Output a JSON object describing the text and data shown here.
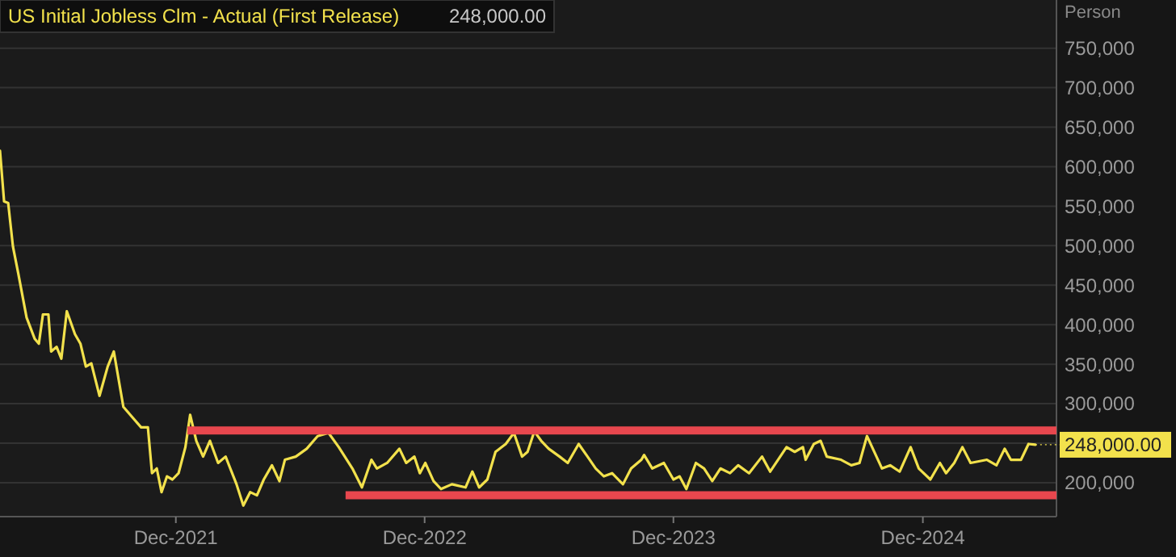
{
  "chart_data": {
    "type": "line",
    "ylabel": "Person",
    "xlim": [
      "2021-03-18",
      "2025-06-15"
    ],
    "ylim": [
      157000,
      811000
    ],
    "xticks": [
      {
        "value": "2021-12-01",
        "label": "Dec-2021"
      },
      {
        "value": "2022-12-01",
        "label": "Dec-2022"
      },
      {
        "value": "2023-12-01",
        "label": "Dec-2023"
      },
      {
        "value": "2024-12-01",
        "label": "Dec-2024"
      }
    ],
    "yticks": [
      {
        "value": 200000,
        "label": "200,000"
      },
      {
        "value": 250000,
        "label": null
      },
      {
        "value": 300000,
        "label": "300,000"
      },
      {
        "value": 350000,
        "label": "350,000"
      },
      {
        "value": 400000,
        "label": "400,000"
      },
      {
        "value": 450000,
        "label": "450,000"
      },
      {
        "value": 500000,
        "label": "500,000"
      },
      {
        "value": 550000,
        "label": "550,000"
      },
      {
        "value": 600000,
        "label": "600,000"
      },
      {
        "value": 650000,
        "label": "650,000"
      },
      {
        "value": 700000,
        "label": "700,000"
      },
      {
        "value": 750000,
        "label": "750,000"
      }
    ],
    "grid": "y",
    "legend": "top left",
    "marker": "none",
    "line_style": "solid",
    "series": [
      {
        "name": "US Initial Jobless Clm - Actual (First Release)",
        "color": "#f2e14c",
        "x": [
          "2021-03-18",
          "2021-03-24",
          "2021-03-30",
          "2021-04-06",
          "2021-04-14",
          "2021-04-26",
          "2021-05-08",
          "2021-05-14",
          "2021-05-20",
          "2021-05-28",
          "2021-06-01",
          "2021-06-09",
          "2021-06-16",
          "2021-06-24",
          "2021-07-06",
          "2021-07-14",
          "2021-07-22",
          "2021-07-30",
          "2021-08-11",
          "2021-08-23",
          "2021-09-01",
          "2021-09-15",
          "2021-09-27",
          "2021-10-11",
          "2021-10-21",
          "2021-10-27",
          "2021-11-03",
          "2021-11-10",
          "2021-11-18",
          "2021-11-26",
          "2021-12-05",
          "2021-12-15",
          "2021-12-22",
          "2021-12-31",
          "2022-01-10",
          "2022-01-20",
          "2022-02-01",
          "2022-02-12",
          "2022-02-28",
          "2022-03-10",
          "2022-03-20",
          "2022-03-30",
          "2022-04-09",
          "2022-04-21",
          "2022-05-02",
          "2022-05-10",
          "2022-05-26",
          "2022-06-11",
          "2022-06-27",
          "2022-07-13",
          "2022-07-28",
          "2022-08-17",
          "2022-08-31",
          "2022-09-14",
          "2022-09-22",
          "2022-10-07",
          "2022-10-25",
          "2022-11-04",
          "2022-11-16",
          "2022-11-24",
          "2022-12-02",
          "2022-12-14",
          "2022-12-25",
          "2023-01-10",
          "2023-01-30",
          "2023-02-09",
          "2023-02-19",
          "2023-03-03",
          "2023-03-15",
          "2023-03-30",
          "2023-04-11",
          "2023-04-23",
          "2023-05-01",
          "2023-05-11",
          "2023-05-21",
          "2023-06-01",
          "2023-06-17",
          "2023-06-29",
          "2023-07-15",
          "2023-07-28",
          "2023-08-09",
          "2023-08-21",
          "2023-09-02",
          "2023-09-18",
          "2023-09-30",
          "2023-10-15",
          "2023-10-19",
          "2023-10-31",
          "2023-11-17",
          "2023-12-01",
          "2023-12-10",
          "2023-12-20",
          "2024-01-03",
          "2024-01-15",
          "2024-01-27",
          "2024-02-08",
          "2024-02-22",
          "2024-03-05",
          "2024-03-21",
          "2024-04-09",
          "2024-04-21",
          "2024-05-15",
          "2024-05-27",
          "2024-06-08",
          "2024-06-12",
          "2024-06-24",
          "2024-07-04",
          "2024-07-13",
          "2024-08-03",
          "2024-08-18",
          "2024-08-30",
          "2024-09-10",
          "2024-10-02",
          "2024-10-14",
          "2024-10-28",
          "2024-11-13",
          "2024-11-25",
          "2024-12-12",
          "2024-12-26",
          "2025-01-04",
          "2025-01-16",
          "2025-01-28",
          "2025-02-09",
          "2025-03-05",
          "2025-03-19",
          "2025-03-31",
          "2025-04-09",
          "2025-04-24",
          "2025-05-05",
          "2025-05-15"
        ],
        "values": [
          620000,
          556000,
          554000,
          499000,
          464000,
          409000,
          382000,
          376000,
          413000,
          413000,
          366000,
          372000,
          357000,
          417000,
          388000,
          376000,
          347000,
          351000,
          310000,
          347000,
          366000,
          296000,
          284000,
          270000,
          270000,
          212000,
          218000,
          188000,
          208000,
          204000,
          212000,
          245000,
          286000,
          253000,
          233000,
          253000,
          225000,
          233000,
          198000,
          171000,
          188000,
          184000,
          204000,
          222000,
          202000,
          229000,
          233000,
          243000,
          259000,
          263000,
          245000,
          218000,
          194000,
          229000,
          218000,
          225000,
          243000,
          225000,
          233000,
          212000,
          225000,
          202000,
          192000,
          198000,
          194000,
          214000,
          194000,
          204000,
          239000,
          249000,
          263000,
          233000,
          239000,
          265000,
          253000,
          243000,
          233000,
          225000,
          249000,
          233000,
          218000,
          208000,
          212000,
          198000,
          218000,
          229000,
          235000,
          218000,
          225000,
          204000,
          208000,
          192000,
          225000,
          218000,
          202000,
          218000,
          212000,
          222000,
          212000,
          233000,
          214000,
          245000,
          239000,
          245000,
          229000,
          249000,
          253000,
          233000,
          229000,
          222000,
          225000,
          259000,
          218000,
          222000,
          214000,
          245000,
          218000,
          204000,
          225000,
          212000,
          225000,
          245000,
          225000,
          229000,
          222000,
          243000,
          229000,
          229000,
          249000,
          248000
        ]
      },
      {
        "type": "line",
        "color": "#e8474e",
        "x": [
          "2021-12-18",
          "2025-06-15"
        ],
        "values": [
          266000,
          266000
        ]
      },
      {
        "type": "line",
        "color": "#e8474e",
        "x": [
          "2022-08-07",
          "2025-06-15"
        ],
        "values": [
          184000,
          184000
        ]
      }
    ],
    "annotations": [
      "248,000.00",
      {
        "text": "248,000.00",
        "x": "2025-05-15",
        "y": 248000
      }
    ]
  }
}
